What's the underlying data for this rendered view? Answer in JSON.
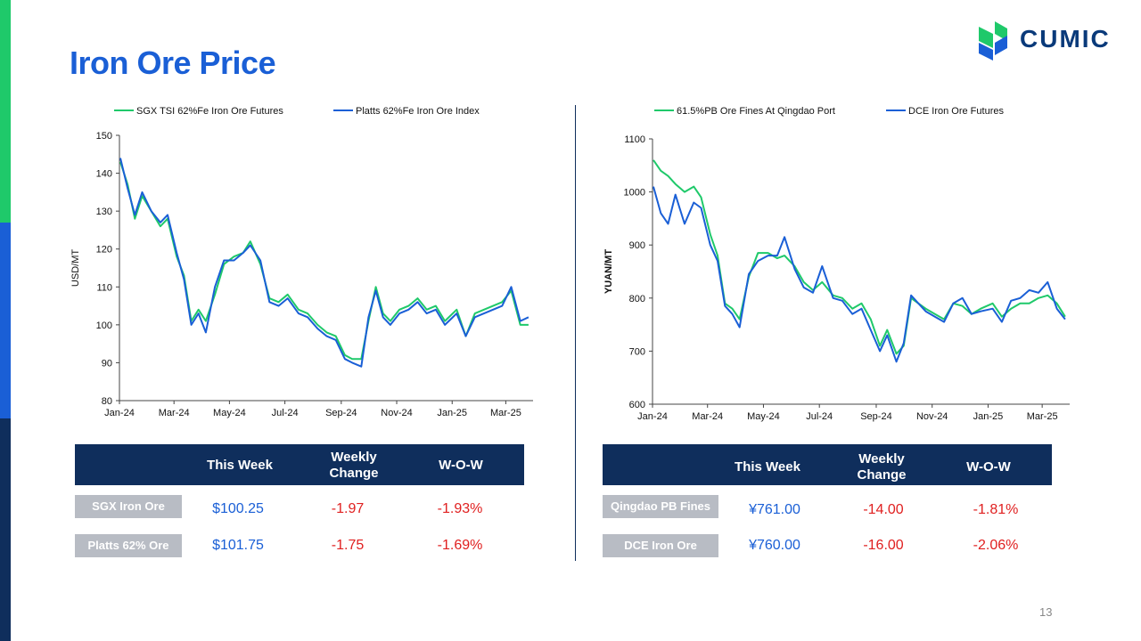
{
  "title": "Iron Ore Price",
  "logo": {
    "text": "CUMIC",
    "colors": [
      "#1fc96a",
      "#1a5fd6",
      "#0a3a7a"
    ]
  },
  "page_number": "13",
  "colors": {
    "green_series": "#1fc96a",
    "blue_series": "#1a5fd6",
    "header_bg": "#0f2e5c",
    "negative": "#e02020"
  },
  "chart_data": [
    {
      "type": "line",
      "ylabel": "USD/MT",
      "ylim": [
        80,
        150
      ],
      "yticks": [
        80,
        90,
        100,
        110,
        120,
        130,
        140,
        150
      ],
      "xlim": [
        "2024-01-01",
        "2025-03-31"
      ],
      "xtick_labels": [
        "Jan-24",
        "Mar-24",
        "May-24",
        "Jul-24",
        "Sep-24",
        "Nov-24",
        "Jan-25",
        "Mar-25"
      ],
      "xtick_dates": [
        "2024-01-01",
        "2024-03-01",
        "2024-05-01",
        "2024-07-01",
        "2024-09-01",
        "2024-11-01",
        "2025-01-01",
        "2025-03-01"
      ],
      "legend_position": "top",
      "series": [
        {
          "name": "SGX TSI 62%Fe Iron Ore Futures",
          "color": "#1fc96a",
          "x": [
            "2024-01-02",
            "2024-01-10",
            "2024-01-18",
            "2024-01-26",
            "2024-02-05",
            "2024-02-15",
            "2024-02-23",
            "2024-03-04",
            "2024-03-12",
            "2024-03-20",
            "2024-03-28",
            "2024-04-05",
            "2024-04-15",
            "2024-04-25",
            "2024-05-06",
            "2024-05-16",
            "2024-05-24",
            "2024-06-04",
            "2024-06-14",
            "2024-06-24",
            "2024-07-04",
            "2024-07-16",
            "2024-07-26",
            "2024-08-06",
            "2024-08-16",
            "2024-08-26",
            "2024-09-05",
            "2024-09-13",
            "2024-09-23",
            "2024-10-01",
            "2024-10-09",
            "2024-10-17",
            "2024-10-25",
            "2024-11-04",
            "2024-11-14",
            "2024-11-24",
            "2024-12-04",
            "2024-12-14",
            "2024-12-24",
            "2025-01-06",
            "2025-01-16",
            "2025-01-26",
            "2025-02-05",
            "2025-02-15",
            "2025-02-25",
            "2025-03-07",
            "2025-03-17",
            "2025-03-26"
          ],
          "y": [
            143,
            137,
            128,
            134,
            130,
            126,
            128,
            118,
            113,
            101,
            104,
            101,
            108,
            116,
            118,
            119,
            122,
            116,
            107,
            106,
            108,
            104,
            103,
            100,
            98,
            97,
            92,
            91,
            91,
            101,
            110,
            103,
            101,
            104,
            105,
            107,
            104,
            105,
            101,
            104,
            97,
            103,
            104,
            105,
            106,
            109,
            100,
            100
          ]
        },
        {
          "name": "Platts 62%Fe Iron Ore Index",
          "color": "#1a5fd6",
          "x": [
            "2024-01-02",
            "2024-01-10",
            "2024-01-18",
            "2024-01-26",
            "2024-02-05",
            "2024-02-15",
            "2024-02-23",
            "2024-03-04",
            "2024-03-12",
            "2024-03-20",
            "2024-03-28",
            "2024-04-05",
            "2024-04-15",
            "2024-04-25",
            "2024-05-06",
            "2024-05-16",
            "2024-05-24",
            "2024-06-04",
            "2024-06-14",
            "2024-06-24",
            "2024-07-04",
            "2024-07-16",
            "2024-07-26",
            "2024-08-06",
            "2024-08-16",
            "2024-08-26",
            "2024-09-05",
            "2024-09-13",
            "2024-09-23",
            "2024-10-01",
            "2024-10-09",
            "2024-10-17",
            "2024-10-25",
            "2024-11-04",
            "2024-11-14",
            "2024-11-24",
            "2024-12-04",
            "2024-12-14",
            "2024-12-24",
            "2025-01-06",
            "2025-01-16",
            "2025-01-26",
            "2025-02-05",
            "2025-02-15",
            "2025-02-25",
            "2025-03-07",
            "2025-03-17",
            "2025-03-26"
          ],
          "y": [
            144,
            136,
            129,
            135,
            130,
            127,
            129,
            119,
            112,
            100,
            103,
            98,
            110,
            117,
            117,
            119,
            121,
            117,
            106,
            105,
            107,
            103,
            102,
            99,
            97,
            96,
            91,
            90,
            89,
            102,
            109,
            102,
            100,
            103,
            104,
            106,
            103,
            104,
            100,
            103,
            97,
            102,
            103,
            104,
            105,
            110,
            101,
            102
          ]
        }
      ]
    },
    {
      "type": "line",
      "ylabel": "YUAN/MT",
      "ylim": [
        600,
        1100
      ],
      "yticks": [
        600,
        700,
        800,
        900,
        1000,
        1100
      ],
      "xlim": [
        "2024-01-01",
        "2025-03-31"
      ],
      "xtick_labels": [
        "Jan-24",
        "Mar-24",
        "May-24",
        "Jul-24",
        "Sep-24",
        "Nov-24",
        "Jan-25",
        "Mar-25"
      ],
      "xtick_dates": [
        "2024-01-01",
        "2024-03-01",
        "2024-05-01",
        "2024-07-01",
        "2024-09-01",
        "2024-11-01",
        "2025-01-01",
        "2025-03-01"
      ],
      "legend_position": "top",
      "series": [
        {
          "name": "61.5%PB Ore Fines At Qingdao Port",
          "color": "#1fc96a",
          "x": [
            "2024-01-02",
            "2024-01-10",
            "2024-01-18",
            "2024-01-26",
            "2024-02-05",
            "2024-02-15",
            "2024-02-23",
            "2024-03-04",
            "2024-03-12",
            "2024-03-20",
            "2024-03-28",
            "2024-04-05",
            "2024-04-15",
            "2024-04-25",
            "2024-05-06",
            "2024-05-16",
            "2024-05-24",
            "2024-06-04",
            "2024-06-14",
            "2024-06-24",
            "2024-07-04",
            "2024-07-16",
            "2024-07-26",
            "2024-08-06",
            "2024-08-16",
            "2024-08-26",
            "2024-09-05",
            "2024-09-13",
            "2024-09-23",
            "2024-10-01",
            "2024-10-09",
            "2024-10-17",
            "2024-10-25",
            "2024-11-04",
            "2024-11-14",
            "2024-11-24",
            "2024-12-04",
            "2024-12-14",
            "2024-12-24",
            "2025-01-06",
            "2025-01-16",
            "2025-01-26",
            "2025-02-05",
            "2025-02-15",
            "2025-02-25",
            "2025-03-07",
            "2025-03-17",
            "2025-03-26"
          ],
          "y": [
            1060,
            1040,
            1030,
            1015,
            1000,
            1010,
            990,
            920,
            880,
            790,
            780,
            760,
            840,
            885,
            885,
            875,
            880,
            860,
            830,
            815,
            830,
            805,
            800,
            780,
            790,
            760,
            710,
            740,
            695,
            710,
            800,
            790,
            780,
            770,
            760,
            790,
            785,
            770,
            780,
            790,
            765,
            780,
            790,
            790,
            800,
            805,
            790,
            765
          ]
        },
        {
          "name": "DCE Iron Ore Futures",
          "color": "#1a5fd6",
          "x": [
            "2024-01-02",
            "2024-01-10",
            "2024-01-18",
            "2024-01-26",
            "2024-02-05",
            "2024-02-15",
            "2024-02-23",
            "2024-03-04",
            "2024-03-12",
            "2024-03-20",
            "2024-03-28",
            "2024-04-05",
            "2024-04-15",
            "2024-04-25",
            "2024-05-06",
            "2024-05-16",
            "2024-05-24",
            "2024-06-04",
            "2024-06-14",
            "2024-06-24",
            "2024-07-04",
            "2024-07-16",
            "2024-07-26",
            "2024-08-06",
            "2024-08-16",
            "2024-08-26",
            "2024-09-05",
            "2024-09-13",
            "2024-09-23",
            "2024-10-01",
            "2024-10-09",
            "2024-10-17",
            "2024-10-25",
            "2024-11-04",
            "2024-11-14",
            "2024-11-24",
            "2024-12-04",
            "2024-12-14",
            "2024-12-24",
            "2025-01-06",
            "2025-01-16",
            "2025-01-26",
            "2025-02-05",
            "2025-02-15",
            "2025-02-25",
            "2025-03-07",
            "2025-03-17",
            "2025-03-26"
          ],
          "y": [
            1010,
            960,
            940,
            995,
            940,
            980,
            970,
            900,
            870,
            785,
            770,
            745,
            845,
            870,
            880,
            880,
            915,
            855,
            820,
            810,
            860,
            800,
            795,
            770,
            780,
            740,
            700,
            730,
            680,
            715,
            805,
            790,
            775,
            765,
            755,
            790,
            800,
            770,
            775,
            780,
            755,
            795,
            800,
            815,
            810,
            830,
            780,
            760
          ]
        }
      ]
    }
  ],
  "tables": {
    "left": {
      "headers": [
        "This Week",
        "Weekly Change",
        "W-O-W"
      ],
      "rows": [
        {
          "label": "SGX Iron Ore",
          "this_week": "$100.25",
          "change": "-1.97",
          "wow": "-1.93%"
        },
        {
          "label": "Platts 62% Ore",
          "this_week": "$101.75",
          "change": "-1.75",
          "wow": "-1.69%"
        }
      ]
    },
    "right": {
      "headers": [
        "This Week",
        "Weekly Change",
        "W-O-W"
      ],
      "rows": [
        {
          "label": "Qingdao PB Fines",
          "this_week": "¥761.00",
          "change": "-14.00",
          "wow": "-1.81%"
        },
        {
          "label": "DCE Iron Ore",
          "this_week": "¥760.00",
          "change": "-16.00",
          "wow": "-2.06%"
        }
      ]
    }
  }
}
